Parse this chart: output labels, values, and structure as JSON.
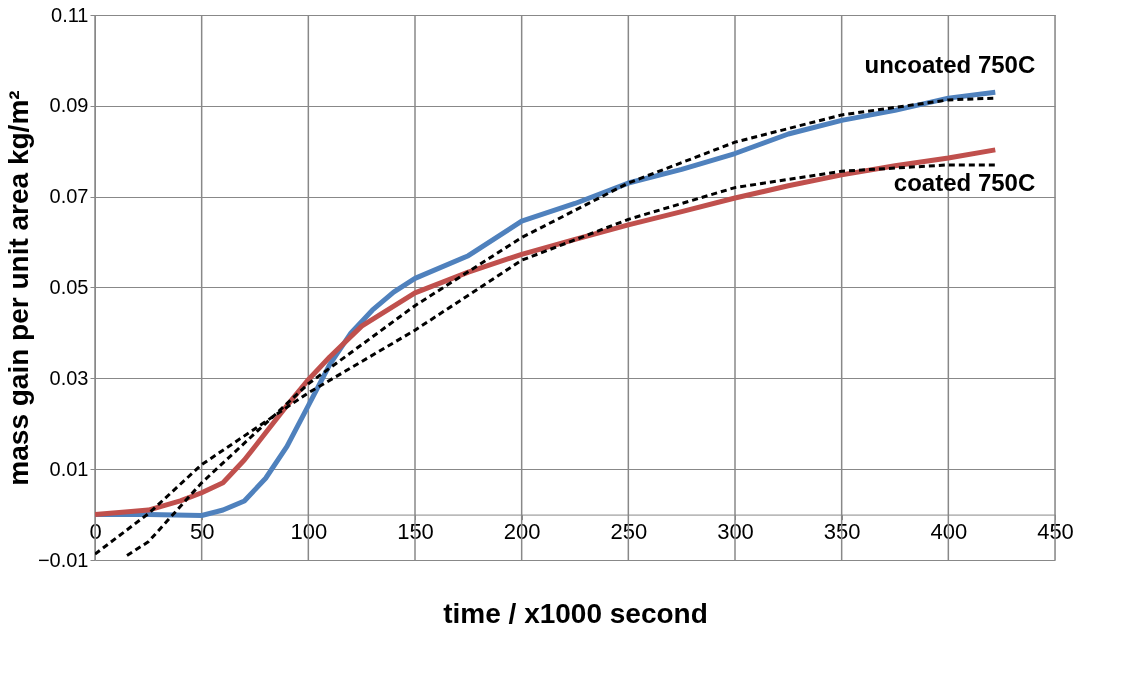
{
  "chart_data": {
    "type": "line",
    "xlabel": "time / x1000 second",
    "ylabel": "mass gain per unit area kg/m²",
    "xlim": [
      0,
      450
    ],
    "xticks": [
      0,
      50,
      100,
      150,
      200,
      250,
      300,
      350,
      400,
      450
    ],
    "ylim": [
      -0.01,
      0.11
    ],
    "yticks": [
      -0.01,
      0.01,
      0.03,
      0.05,
      0.07,
      0.09,
      0.11
    ],
    "grid": true,
    "line_style": "solid",
    "marker": "none",
    "series": [
      {
        "name": "uncoated 750C",
        "color": "#4f81bd",
        "x": [
          0,
          25,
          50,
          60,
          70,
          80,
          90,
          100,
          110,
          120,
          130,
          140,
          150,
          175,
          200,
          225,
          250,
          275,
          300,
          325,
          350,
          375,
          400,
          422
        ],
        "values": [
          0.0,
          0.0,
          -0.0002,
          0.001,
          0.003,
          0.008,
          0.015,
          0.024,
          0.033,
          0.04,
          0.045,
          0.049,
          0.052,
          0.057,
          0.0646,
          0.0685,
          0.073,
          0.076,
          0.0795,
          0.0838,
          0.0868,
          0.089,
          0.0917,
          0.093
        ]
      },
      {
        "name": "coated 750C",
        "color": "#c0504d",
        "x": [
          0,
          25,
          40,
          50,
          60,
          70,
          80,
          90,
          100,
          110,
          125,
          150,
          175,
          200,
          225,
          250,
          275,
          300,
          325,
          350,
          375,
          400,
          422
        ],
        "values": [
          0.0,
          0.001,
          0.003,
          0.0048,
          0.007,
          0.012,
          0.018,
          0.024,
          0.0297,
          0.0347,
          0.0415,
          0.0488,
          0.0534,
          0.0573,
          0.0606,
          0.0638,
          0.0667,
          0.0697,
          0.0724,
          0.0748,
          0.0768,
          0.0785,
          0.0803
        ]
      },
      {
        "color": "#000000",
        "line_style": "dashed",
        "x": [
          15,
          25,
          50,
          100,
          150,
          200,
          250,
          300,
          350,
          400,
          422
        ],
        "values": [
          -0.009,
          -0.006,
          0.007,
          0.0288,
          0.046,
          0.061,
          0.073,
          0.082,
          0.088,
          0.0913,
          0.0917
        ]
      },
      {
        "color": "#000000",
        "line_style": "dashed",
        "x": [
          0,
          25,
          50,
          100,
          150,
          200,
          250,
          300,
          350,
          400,
          422
        ],
        "values": [
          -0.0087,
          0.0002,
          0.011,
          0.0268,
          0.0406,
          0.056,
          0.065,
          0.072,
          0.0756,
          0.077,
          0.077
        ]
      }
    ]
  }
}
